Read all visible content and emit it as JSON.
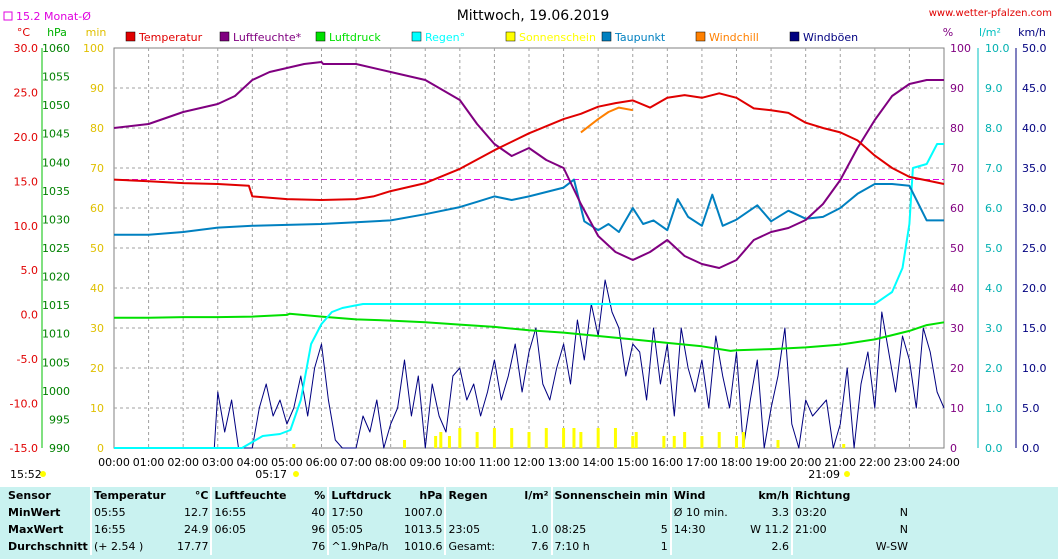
{
  "header": {
    "title": "Mittwoch, 19.06.2019",
    "source": "www.wetter-pfalzen.com",
    "monthly_avg_label": "15.2 Monat-Ø",
    "sunrise": "05:17",
    "sunset": "21:09",
    "footer_time": "15:52"
  },
  "colors": {
    "Temperatur": "#e00000",
    "Luftfeuchte": "#800080",
    "Luftdruck": "#00e000",
    "Regen": "#00ffff",
    "Sonnenschein": "#ffff00",
    "Taupunkt": "#0080c0",
    "Windchill": "#ff8000",
    "Windboen": "#000080",
    "monthly_avg": "#e000e0"
  },
  "chart_data": {
    "type": "line",
    "title": "Mittwoch, 19.06.2019",
    "x_labels": [
      "00:00",
      "01:00",
      "02:00",
      "03:00",
      "04:00",
      "05:00",
      "06:00",
      "07:00",
      "08:00",
      "09:00",
      "10:00",
      "11:00",
      "12:00",
      "13:00",
      "14:00",
      "15:00",
      "16:00",
      "17:00",
      "18:00",
      "19:00",
      "20:00",
      "21:00",
      "22:00",
      "23:00",
      "24:00"
    ],
    "axes": {
      "temp_c": {
        "label": "°C",
        "ticks": [
          "30.0",
          "25.0",
          "20.0",
          "15.0",
          "10.0",
          "5.0",
          "0.0",
          "-5.0",
          "-10.0",
          "-15.0"
        ],
        "range": [
          -15,
          30
        ]
      },
      "pressure_hpa": {
        "label": "hPa",
        "ticks": [
          "1060",
          "1055",
          "1050",
          "1045",
          "1040",
          "1035",
          "1030",
          "1025",
          "1020",
          "1015",
          "1010",
          "1005",
          "1000",
          "995",
          "990"
        ],
        "range": [
          990,
          1060
        ]
      },
      "sun_min": {
        "label": "min",
        "ticks": [
          "100",
          "90",
          "80",
          "70",
          "60",
          "50",
          "40",
          "30",
          "20",
          "10",
          "0"
        ],
        "range": [
          0,
          100
        ]
      },
      "humidity_pct": {
        "label": "%",
        "ticks": [
          "100",
          "90",
          "80",
          "70",
          "60",
          "50",
          "40",
          "30",
          "20",
          "10",
          "0"
        ],
        "range": [
          0,
          100
        ]
      },
      "rain_lm2": {
        "label": "l/m²",
        "ticks": [
          "10.0",
          "9.0",
          "8.0",
          "7.0",
          "6.0",
          "5.0",
          "4.0",
          "3.0",
          "2.0",
          "1.0",
          "0.0"
        ],
        "range": [
          0,
          10
        ]
      },
      "wind_kmh": {
        "label": "km/h",
        "ticks": [
          "50.0",
          "45.0",
          "40.0",
          "35.0",
          "30.0",
          "25.0",
          "20.0",
          "15.0",
          "10.0",
          "5.0",
          "0.0"
        ],
        "range": [
          0,
          50
        ]
      }
    },
    "monthly_avg_temp": 15.2,
    "series": [
      {
        "name": "Temperatur",
        "axis": "temp_c",
        "x": [
          0,
          1,
          2,
          3,
          3.9,
          4,
          5,
          6,
          7,
          7.5,
          8,
          9,
          10,
          11,
          12,
          13,
          13.5,
          14,
          14.5,
          15,
          15.5,
          16,
          16.5,
          17,
          17.5,
          18,
          18.5,
          19,
          19.5,
          20,
          20.5,
          21,
          21.5,
          22,
          22.5,
          23,
          23.5,
          24
        ],
        "y": [
          15.2,
          15.0,
          14.8,
          14.7,
          14.5,
          13.3,
          13.0,
          12.9,
          13.0,
          13.3,
          13.9,
          14.8,
          16.4,
          18.5,
          20.4,
          22.0,
          22.6,
          23.4,
          23.8,
          24.1,
          23.3,
          24.4,
          24.7,
          24.4,
          24.9,
          24.4,
          23.2,
          23.0,
          22.7,
          21.6,
          21.0,
          20.5,
          19.6,
          17.9,
          16.5,
          15.5,
          15.1,
          14.7
        ]
      },
      {
        "name": "Luftfeuchte*",
        "axis": "humidity_pct",
        "x": [
          0,
          1,
          2,
          3,
          3.5,
          4,
          4.5,
          5,
          5.5,
          6,
          6.05,
          7,
          8,
          9,
          10,
          10.5,
          11,
          11.5,
          12,
          12.5,
          13,
          13.5,
          14,
          14.5,
          15,
          15.5,
          16,
          16.5,
          17,
          17.5,
          18,
          18.5,
          19,
          19.5,
          20,
          20.5,
          21,
          21.5,
          22,
          22.5,
          23,
          23.5,
          24
        ],
        "y": [
          80,
          81,
          84,
          86,
          88,
          92,
          94,
          95,
          96,
          96.5,
          96,
          96,
          94,
          92,
          87,
          81,
          76,
          73,
          75,
          72,
          70,
          61,
          53,
          49,
          47,
          49,
          52,
          48,
          46,
          45,
          47,
          52,
          54,
          55,
          57,
          61,
          67,
          75,
          82,
          88,
          91,
          92,
          92
        ]
      },
      {
        "name": "Luftdruck",
        "axis": "pressure_hpa",
        "x": [
          0,
          1,
          2,
          3,
          4,
          5,
          5.08,
          6,
          7,
          8,
          9,
          10,
          11,
          12,
          13,
          14,
          15,
          16,
          17,
          17.83,
          18,
          19,
          20,
          21,
          22,
          23,
          23.5,
          24
        ],
        "y": [
          1012.8,
          1012.8,
          1012.9,
          1012.9,
          1013.0,
          1013.3,
          1013.5,
          1013.0,
          1012.5,
          1012.3,
          1012.0,
          1011.6,
          1011.2,
          1010.6,
          1010.2,
          1009.6,
          1009.0,
          1008.4,
          1007.8,
          1007.0,
          1007.1,
          1007.3,
          1007.6,
          1008.1,
          1009.0,
          1010.5,
          1011.5,
          1012.0
        ]
      },
      {
        "name": "Regen°",
        "axis": "rain_lm2",
        "x": [
          0,
          3.7,
          3.9,
          4.3,
          4.8,
          5.1,
          5.4,
          5.7,
          6.0,
          6.3,
          6.6,
          6.9,
          7.2,
          7.5,
          20,
          21,
          21.5,
          22,
          22.5,
          22.8,
          23,
          23.1,
          23.5,
          23.8,
          24
        ],
        "y": [
          0,
          0,
          0.1,
          0.3,
          0.35,
          0.45,
          1.2,
          2.6,
          3.1,
          3.4,
          3.5,
          3.55,
          3.6,
          3.6,
          3.6,
          3.6,
          3.6,
          3.6,
          3.9,
          4.5,
          5.6,
          7.0,
          7.1,
          7.6,
          7.6
        ]
      },
      {
        "name": "Sonnenschein",
        "axis": "sun_min",
        "x": [
          5.2,
          8.4,
          9.3,
          9.45,
          9.7,
          10,
          10.5,
          11,
          11.5,
          12,
          12.5,
          13,
          13.3,
          13.5,
          14,
          14.5,
          15,
          15.1,
          15.9,
          16.2,
          16.5,
          17,
          17.5,
          18,
          18.2,
          19.2,
          21.1
        ],
        "y": [
          1,
          2,
          3,
          4,
          3,
          5,
          4,
          5,
          5,
          4,
          5,
          5,
          5,
          4,
          5,
          5,
          3,
          4,
          3,
          3,
          4,
          3,
          4,
          3,
          4,
          2,
          1
        ]
      },
      {
        "name": "Taupunkt",
        "axis": "temp_c",
        "x": [
          0,
          1,
          2,
          3,
          4,
          5,
          6,
          7,
          8,
          9,
          10,
          10.5,
          11,
          11.5,
          12,
          12.5,
          13,
          13.3,
          13.6,
          14,
          14.3,
          14.6,
          15,
          15.3,
          15.6,
          16,
          16.3,
          16.6,
          17,
          17.3,
          17.6,
          18,
          18.3,
          18.6,
          19,
          19.5,
          20,
          20.5,
          21,
          21.5,
          22,
          22.5,
          23,
          23.5,
          24
        ],
        "y": [
          9.0,
          9.0,
          9.3,
          9.8,
          10.0,
          10.1,
          10.2,
          10.4,
          10.6,
          11.3,
          12.1,
          12.7,
          13.3,
          12.9,
          13.3,
          13.8,
          14.3,
          15.2,
          10.5,
          9.5,
          10.2,
          9.3,
          12.0,
          10.2,
          10.6,
          9.5,
          13.0,
          11.0,
          10.0,
          13.5,
          10.0,
          10.7,
          11.5,
          12.3,
          10.5,
          11.7,
          10.8,
          11.0,
          12.0,
          13.6,
          14.7,
          14.7,
          14.5,
          10.6,
          10.6
        ]
      },
      {
        "name": "Windchill",
        "axis": "temp_c",
        "x": [
          13.5,
          14,
          14.3,
          14.6,
          15
        ],
        "y": [
          20.5,
          22.0,
          22.8,
          23.3,
          23.0
        ]
      },
      {
        "name": "Windböen",
        "axis": "wind_kmh",
        "x": [
          0,
          2.9,
          3.0,
          3.2,
          3.4,
          3.6,
          4.0,
          4.2,
          4.4,
          4.6,
          4.8,
          5.0,
          5.2,
          5.4,
          5.6,
          5.8,
          6.0,
          6.2,
          6.4,
          6.6,
          6.8,
          7.0,
          7.2,
          7.4,
          7.6,
          7.8,
          8.0,
          8.2,
          8.4,
          8.6,
          8.8,
          9.0,
          9.2,
          9.4,
          9.6,
          9.8,
          10.0,
          10.2,
          10.4,
          10.6,
          10.8,
          11.0,
          11.2,
          11.4,
          11.6,
          11.8,
          12.0,
          12.2,
          12.4,
          12.6,
          12.8,
          13.0,
          13.2,
          13.4,
          13.6,
          13.8,
          14.0,
          14.2,
          14.4,
          14.6,
          14.8,
          15.0,
          15.2,
          15.4,
          15.6,
          15.8,
          16.0,
          16.2,
          16.4,
          16.6,
          16.8,
          17.0,
          17.2,
          17.4,
          17.6,
          17.8,
          18.0,
          18.2,
          18.4,
          18.6,
          18.8,
          19.0,
          19.2,
          19.4,
          19.6,
          19.8,
          20.0,
          20.2,
          20.4,
          20.6,
          20.8,
          21.0,
          21.2,
          21.4,
          21.6,
          21.8,
          22.0,
          22.2,
          22.4,
          22.6,
          22.8,
          23.0,
          23.2,
          23.4,
          23.6,
          23.8,
          24.0
        ],
        "y": [
          0,
          0,
          7,
          2,
          6,
          0,
          0,
          5,
          8,
          4,
          6,
          3,
          5,
          9,
          4,
          10,
          13,
          6,
          1,
          0,
          0,
          0,
          4,
          2,
          6,
          0,
          3,
          5,
          11,
          4,
          9,
          0,
          8,
          4,
          2,
          9,
          10,
          6,
          8,
          4,
          7,
          11,
          6,
          9,
          13,
          7,
          12,
          15,
          8,
          6,
          10,
          13,
          8,
          16,
          11,
          18,
          14,
          21,
          17,
          15,
          9,
          13,
          12,
          6,
          15,
          8,
          13,
          4,
          15,
          10,
          7,
          11,
          5,
          14,
          9,
          5,
          12,
          0,
          6,
          11,
          0,
          5,
          9,
          15,
          3,
          0,
          6,
          4,
          5,
          6,
          0,
          3,
          10,
          0,
          8,
          12,
          5,
          17,
          12,
          7,
          14,
          11,
          5,
          15,
          12,
          7,
          5
        ]
      }
    ]
  },
  "legend": [
    {
      "key": "Temperatur",
      "label": "Temperatur"
    },
    {
      "key": "Luftfeuchte",
      "label": "Luftfeuchte*"
    },
    {
      "key": "Luftdruck",
      "label": "Luftdruck"
    },
    {
      "key": "Regen",
      "label": "Regen°"
    },
    {
      "key": "Sonnenschein",
      "label": "Sonnenschein"
    },
    {
      "key": "Taupunkt",
      "label": "Taupunkt"
    },
    {
      "key": "Windchill",
      "label": "Windchill"
    },
    {
      "key": "Windboen",
      "label": "Windböen"
    }
  ],
  "stats": {
    "headers": {
      "sensor": "Sensor",
      "temperatur": "Temperatur",
      "temp_unit": "°C",
      "luftfeuchte": "Luftfeuchte",
      "hum_unit": "%",
      "luftdruck": "Luftdruck",
      "pres_unit": "hPa",
      "regen": "Regen",
      "rain_unit": "l/m²",
      "sonne": "Sonnenschein min",
      "wind": "Wind",
      "wind_unit": "km/h",
      "richtung": "Richtung"
    },
    "rows": [
      {
        "label": "MinWert",
        "temp_time": "05:55",
        "temp_val": "12.7",
        "hum_time": "16:55",
        "hum_val": "40",
        "pres_time": "17:50",
        "pres_val": "1007.0",
        "rain_time": "",
        "rain_val": "",
        "sun_time": "",
        "sun_val": "",
        "wind_time": "Ø 10 min.",
        "wind_val": "3.3",
        "dir_time": "03:20",
        "dir_val": "N"
      },
      {
        "label": "MaxWert",
        "temp_time": "16:55",
        "temp_val": "24.9",
        "hum_time": "06:05",
        "hum_val": "96",
        "pres_time": "05:05",
        "pres_val": "1013.5",
        "rain_time": "23:05",
        "rain_val": "1.0",
        "sun_time": "08:25",
        "sun_val": "5",
        "wind_time": "14:30",
        "wind_val": "W 11.2",
        "dir_time": "21:00",
        "dir_val": "N"
      },
      {
        "label": "Durchschnitt",
        "temp_time": "(+ 2.54 )",
        "temp_val": "17.77",
        "hum_time": "",
        "hum_val": "76",
        "pres_time": "^1.9hPa/h",
        "pres_val": "1010.6",
        "rain_time": "Gesamt:",
        "rain_val": "7.6",
        "sun_time": "7:10 h",
        "sun_val": "1",
        "wind_time": "",
        "wind_val": "2.6",
        "dir_time": "",
        "dir_val": "W-SW"
      }
    ]
  }
}
